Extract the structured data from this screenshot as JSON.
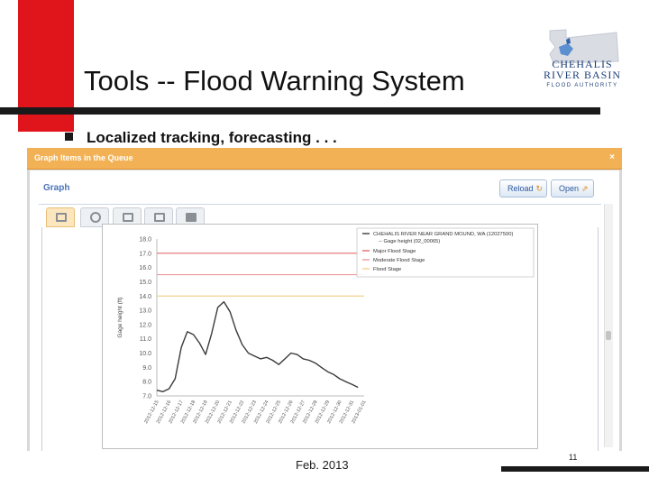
{
  "slide": {
    "title": "Tools -- Flood Warning System",
    "bullet": "Localized tracking, forecasting . . .",
    "footer_date": "Feb. 2013",
    "page_number": "11"
  },
  "logo": {
    "line1": "CHEHALIS",
    "line2": "RIVER BASIN",
    "line3": "FLOOD AUTHORITY"
  },
  "dialog": {
    "title": "Graph Items in the Queue",
    "close_glyph": "×",
    "graph_label": "Graph",
    "reload_label": "Reload",
    "reload_icon": "refresh-icon",
    "open_label": "Open",
    "open_icon": "open-icon",
    "accent_color": "#f2b155",
    "tabs": [
      {
        "icon": "list-icon",
        "active": true
      },
      {
        "icon": "clock-icon",
        "active": false
      },
      {
        "icon": "table-icon",
        "active": false
      },
      {
        "icon": "grid-icon",
        "active": false
      },
      {
        "icon": "chart-icon",
        "active": false
      }
    ]
  },
  "chart_data": {
    "type": "line",
    "ylabel": "Gage height (ft)",
    "ylim": [
      7.0,
      18.0
    ],
    "yticks": [
      "18.0",
      "17.0",
      "16.0",
      "15.0",
      "14.0",
      "13.0",
      "12.0",
      "11.0",
      "10.0",
      "9.0",
      "8.0",
      "7.0"
    ],
    "x_labels": [
      "2012-12-15",
      "2012-12-16",
      "2012-12-17",
      "2012-12-18",
      "2012-12-19",
      "2012-12-20",
      "2012-12-21",
      "2012-12-22",
      "2012-12-23",
      "2012-12-24",
      "2012-12-25",
      "2012-12-26",
      "2012-12-27",
      "2012-12-28",
      "2012-12-29",
      "2012-12-30",
      "2012-12-31",
      "2013-01-01"
    ],
    "thresholds": [
      {
        "name": "Major Flood Stage",
        "value": 17.0,
        "color": "#e36b6b"
      },
      {
        "name": "Moderate Flood Stage",
        "value": 15.5,
        "color": "#ee9a9a"
      },
      {
        "name": "Flood Stage",
        "value": 14.0,
        "color": "#f3d28c"
      }
    ],
    "series": [
      {
        "name": "CHEHALIS RIVER NEAR GRAND MOUND, WA (12027500)",
        "sub": "-- Gage height (02_00065)",
        "color": "#3a3a3a",
        "x": [
          0,
          0.5,
          1,
          1.5,
          2,
          2.5,
          3,
          3.5,
          4,
          4.5,
          5,
          5.5,
          6,
          6.5,
          7,
          7.5,
          8,
          8.5,
          9,
          9.5,
          10,
          10.5,
          11,
          11.5,
          12,
          12.5,
          13,
          13.5,
          14,
          14.5,
          15,
          15.5,
          16,
          16.5
        ],
        "values": [
          7.4,
          7.3,
          7.5,
          8.2,
          10.4,
          11.5,
          11.3,
          10.7,
          9.9,
          11.4,
          13.2,
          13.6,
          12.9,
          11.6,
          10.6,
          10.0,
          9.8,
          9.6,
          9.7,
          9.5,
          9.2,
          9.6,
          10.0,
          9.9,
          9.6,
          9.5,
          9.3,
          9.0,
          8.7,
          8.5,
          8.2,
          8.0,
          7.8,
          7.6
        ]
      }
    ],
    "legend_position": "top-right",
    "grid": false
  }
}
